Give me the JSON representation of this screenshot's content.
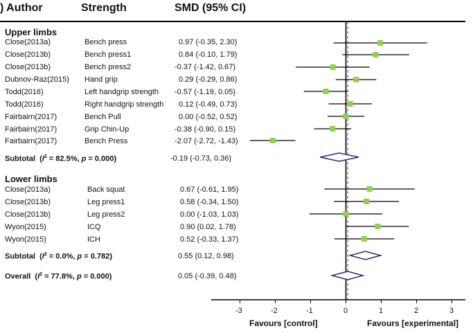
{
  "header": {
    "author": ") Author",
    "strength": "Strength",
    "smd": "SMD (95% CI)"
  },
  "sections": [
    {
      "title": "Upper limbs",
      "studies": [
        {
          "author": "Close(2013a)",
          "strength": "Bench press",
          "ci": "0.97 (-0.35, 2.30)"
        },
        {
          "author": "Close(2013b)",
          "strength": "Bench press1",
          "ci": "0.84 (-0.10, 1.79)"
        },
        {
          "author": "Close(2013b)",
          "strength": "Bench press2",
          "ci": "-0.37 (-1.42, 0.67)"
        },
        {
          "author": "Dubnov-Raz(2015)",
          "strength": "Hand grip",
          "ci": "0.29 (-0.29, 0.86)"
        },
        {
          "author": "Todd(2016)",
          "strength": "Left handgrip strength",
          "ci": "-0.57 (-1.19, 0.05)"
        },
        {
          "author": "Todd(2016)",
          "strength": "Right handgrip strength",
          "ci": "0.12 (-0.49, 0.73)"
        },
        {
          "author": "Fairbairn(2017)",
          "strength": "Bench Pull",
          "ci": "0.00 (-0.52, 0.52)"
        },
        {
          "author": "Fairbairn(2017)",
          "strength": "Grip Chin-Up",
          "ci": "-0.38 (-0.90, 0.15)"
        },
        {
          "author": "Fairbairn(2017)",
          "strength": "Bench Press",
          "ci": "-2.07 (-2.72, -1.43)"
        }
      ],
      "subtotal": {
        "label": "Subtotal",
        "i2": "82.5%",
        "p": "0.000",
        "ci": "-0.19 (-0.73, 0.36)"
      }
    },
    {
      "title": "Lower limbs",
      "studies": [
        {
          "author": "Close(2013a)",
          "strength": "Back squat",
          "ci": "0.67 (-0.61, 1.95)"
        },
        {
          "author": "Close(2013b)",
          "strength": "Leg press1",
          "ci": "0.58 (-0.34, 1.50)"
        },
        {
          "author": "Close(2013b)",
          "strength": "Leg press2",
          "ci": "0.00 (-1.03, 1.03)"
        },
        {
          "author": "Wyon(2015)",
          "strength": "ICQ",
          "ci": "0.90 (0.02, 1.78)"
        },
        {
          "author": "Wyon(2015)",
          "strength": "ICH",
          "ci": "0.52 (-0.33, 1.37)"
        }
      ],
      "subtotal": {
        "label": "Subtotal",
        "i2": "0.0%",
        "p": "0.782",
        "ci": "0.55 (0.12, 0.98)"
      }
    }
  ],
  "overall": {
    "label": "Overall",
    "i2": "77.8%",
    "p": "0.000",
    "ci": "0.05 (-0.39, 0.48)"
  },
  "axis": {
    "ticks": [
      "-3",
      "-2",
      "-1",
      "0",
      "1",
      "2",
      "3"
    ],
    "favours_left": "Favours [control]",
    "favours_right": "Favours [experimental]"
  },
  "chart_data": {
    "type": "forest",
    "xlim": [
      -3.0,
      3.0
    ],
    "null_line": 0,
    "dashed_line": 0.05,
    "upper_limbs": [
      {
        "smd": 0.97,
        "lo": -0.35,
        "hi": 2.3
      },
      {
        "smd": 0.84,
        "lo": -0.1,
        "hi": 1.79
      },
      {
        "smd": -0.37,
        "lo": -1.42,
        "hi": 0.67
      },
      {
        "smd": 0.29,
        "lo": -0.29,
        "hi": 0.86
      },
      {
        "smd": -0.57,
        "lo": -1.19,
        "hi": 0.05
      },
      {
        "smd": 0.12,
        "lo": -0.49,
        "hi": 0.73
      },
      {
        "smd": 0.0,
        "lo": -0.52,
        "hi": 0.52
      },
      {
        "smd": -0.38,
        "lo": -0.9,
        "hi": 0.15
      },
      {
        "smd": -2.07,
        "lo": -2.72,
        "hi": -1.43
      }
    ],
    "upper_subtotal": {
      "smd": -0.19,
      "lo": -0.73,
      "hi": 0.36
    },
    "lower_limbs": [
      {
        "smd": 0.67,
        "lo": -0.61,
        "hi": 1.95
      },
      {
        "smd": 0.58,
        "lo": -0.34,
        "hi": 1.5
      },
      {
        "smd": 0.0,
        "lo": -1.03,
        "hi": 1.03
      },
      {
        "smd": 0.9,
        "lo": 0.02,
        "hi": 1.78
      },
      {
        "smd": 0.52,
        "lo": -0.33,
        "hi": 1.37
      }
    ],
    "lower_subtotal": {
      "smd": 0.55,
      "lo": 0.12,
      "hi": 0.98
    },
    "overall": {
      "smd": 0.05,
      "lo": -0.39,
      "hi": 0.48
    },
    "colors": {
      "marker": "#8fd14f",
      "diamond": "#1f2d6b",
      "dashed": "#b03030",
      "line": "#000000"
    }
  }
}
